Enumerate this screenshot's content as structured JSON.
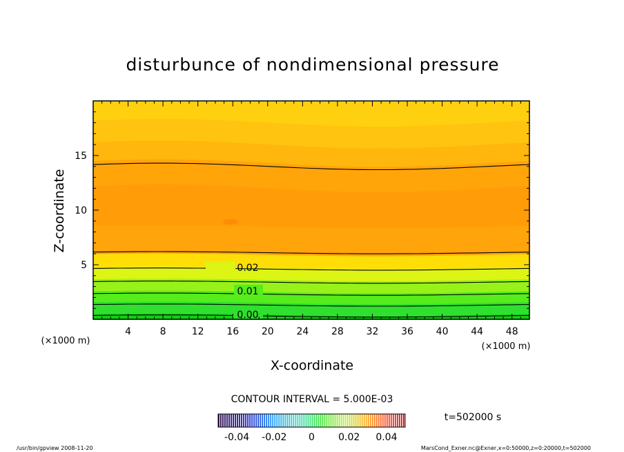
{
  "chart_data": {
    "type": "contour",
    "title": "disturbunce of nondimensional pressure",
    "xlabel": "X-coordinate",
    "ylabel": "Z-coordinate",
    "x_unit": "(×1000 m)",
    "y_unit": "(×1000 m)",
    "xlim": [
      0,
      50
    ],
    "ylim": [
      0,
      20
    ],
    "x_ticks": [
      4,
      8,
      12,
      16,
      20,
      24,
      28,
      32,
      36,
      40,
      44,
      48
    ],
    "y_ticks": [
      5,
      10,
      15
    ],
    "contour_labels": [
      "0.02",
      "0.01",
      "0.00"
    ],
    "contour_interval_text": "CONTOUR INTERVAL = 5.000E-03",
    "contour_interval": 0.005,
    "time_text": "t=502000 s",
    "colorbar": {
      "ticks": [
        "-0.04",
        "-0.02",
        "0",
        "0.02",
        "0.04"
      ],
      "range": [
        -0.05,
        0.05
      ]
    },
    "bands": [
      {
        "z_top": 0.4,
        "color": "#12cf12"
      },
      {
        "z_top": 1.5,
        "color": "#2fe02f"
      },
      {
        "z_top": 2.5,
        "color": "#57ec1c"
      },
      {
        "z_top": 3.6,
        "color": "#98f21a"
      },
      {
        "z_top": 4.7,
        "color": "#dcf515"
      },
      {
        "z_top": 5.9,
        "color": "#ffde08"
      },
      {
        "z_top": 8.5,
        "color": "#ffa40a"
      },
      {
        "z_top": 12.0,
        "color": "#ff9c08"
      },
      {
        "z_top": 14.3,
        "color": "#ffa50a"
      },
      {
        "z_top": 16.0,
        "color": "#ffb60d"
      },
      {
        "z_top": 18.0,
        "color": "#ffc40f"
      },
      {
        "z_top": 20.0,
        "color": "#ffd00f"
      }
    ],
    "contour_lines_z": [
      0.3,
      1.3,
      2.3,
      3.4,
      4.6,
      6.1,
      14.0
    ]
  },
  "footer": {
    "left": "/usr/bin/gpview   2008-11-20",
    "right": "MarsCond_Exner.nc@Exner,x=0:50000,z=0:20000,t=502000"
  }
}
